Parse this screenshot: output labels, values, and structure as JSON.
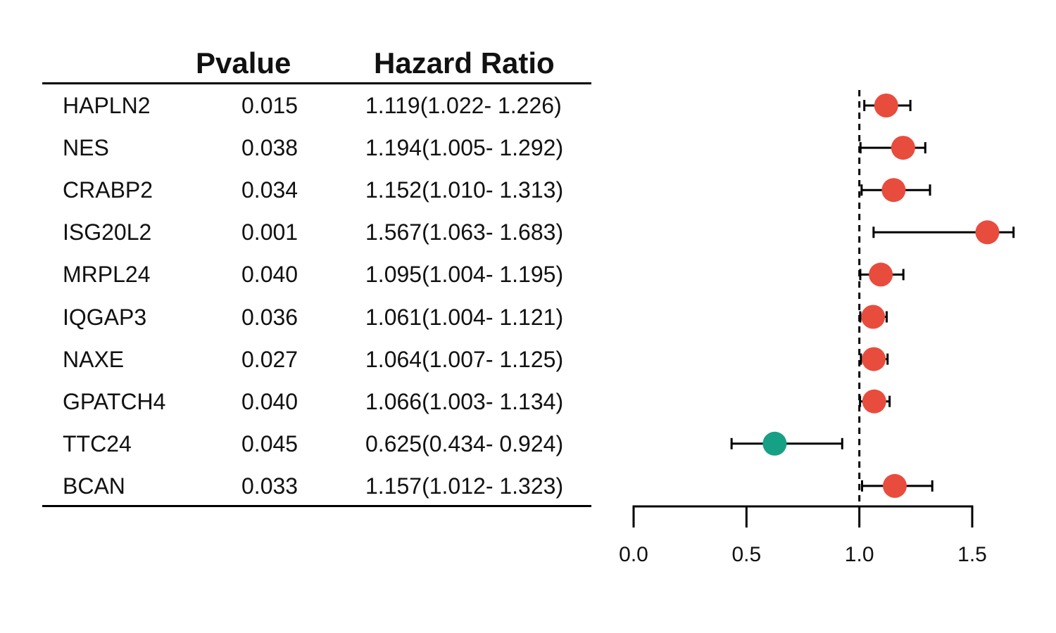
{
  "chart_data": {
    "type": "forest",
    "columns": {
      "pvalue": "Pvalue",
      "hazard_ratio": "Hazard Ratio"
    },
    "rows": [
      {
        "gene": "HAPLN2",
        "pvalue": "0.015",
        "hr_text": "1.119(1.022- 1.226)",
        "hr": 1.119,
        "lower": 1.022,
        "upper": 1.226
      },
      {
        "gene": "NES",
        "pvalue": "0.038",
        "hr_text": "1.194(1.005- 1.292)",
        "hr": 1.194,
        "lower": 1.005,
        "upper": 1.292
      },
      {
        "gene": "CRABP2",
        "pvalue": "0.034",
        "hr_text": "1.152(1.010- 1.313)",
        "hr": 1.152,
        "lower": 1.01,
        "upper": 1.313
      },
      {
        "gene": "ISG20L2",
        "pvalue": "0.001",
        "hr_text": "1.567(1.063- 1.683)",
        "hr": 1.567,
        "lower": 1.063,
        "upper": 1.683
      },
      {
        "gene": "MRPL24",
        "pvalue": "0.040",
        "hr_text": "1.095(1.004- 1.195)",
        "hr": 1.095,
        "lower": 1.004,
        "upper": 1.195
      },
      {
        "gene": "IQGAP3",
        "pvalue": "0.036",
        "hr_text": "1.061(1.004- 1.121)",
        "hr": 1.061,
        "lower": 1.004,
        "upper": 1.121
      },
      {
        "gene": "NAXE",
        "pvalue": "0.027",
        "hr_text": "1.064(1.007- 1.125)",
        "hr": 1.064,
        "lower": 1.007,
        "upper": 1.125
      },
      {
        "gene": "GPATCH4",
        "pvalue": "0.040",
        "hr_text": "1.066(1.003- 1.134)",
        "hr": 1.066,
        "lower": 1.003,
        "upper": 1.134
      },
      {
        "gene": "TTC24",
        "pvalue": "0.045",
        "hr_text": "0.625(0.434- 0.924)",
        "hr": 0.625,
        "lower": 0.434,
        "upper": 0.924
      },
      {
        "gene": "BCAN",
        "pvalue": "0.033",
        "hr_text": "1.157(1.012- 1.323)",
        "hr": 1.157,
        "lower": 1.012,
        "upper": 1.323
      }
    ],
    "x_ticks": [
      {
        "value": 0.0,
        "label": "0.0"
      },
      {
        "value": 0.5,
        "label": "0.5"
      },
      {
        "value": 1.0,
        "label": "1.0"
      },
      {
        "value": 1.5,
        "label": "1.5"
      }
    ],
    "xlim": [
      0.0,
      1.5
    ],
    "reference_line": 1.0,
    "colors": {
      "risk": "#e84c3d",
      "protective": "#16a085",
      "line": "#000000"
    }
  }
}
